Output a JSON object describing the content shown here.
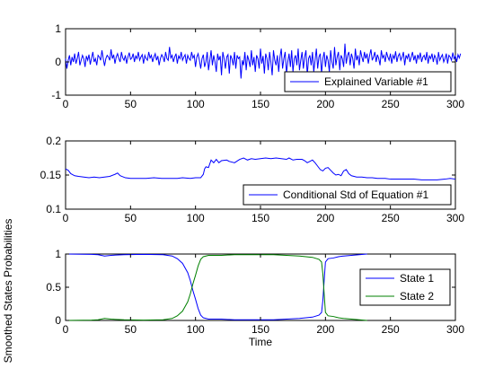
{
  "chart_data": [
    {
      "type": "line",
      "xlim": [
        0,
        300
      ],
      "ylim": [
        -1,
        1
      ],
      "xticks": [
        "0",
        "50",
        "100",
        "150",
        "200",
        "250",
        "300"
      ],
      "yticks": [
        "-1",
        "0",
        "1"
      ],
      "xlabel": "",
      "ylabel": "",
      "grid": false,
      "legend_position": "bottom-right",
      "series": [
        {
          "name": "Explained Variable #1",
          "color": "#0000ff",
          "x_step": 1,
          "values": [
            0.1,
            -0.2,
            0.05,
            0.2,
            -0.1,
            0.15,
            0.0,
            0.25,
            -0.05,
            0.1,
            0.3,
            -0.1,
            0.05,
            0.2,
            0.1,
            -0.15,
            0.18,
            0.05,
            0.22,
            -0.08,
            0.12,
            0.3,
            0.0,
            0.1,
            -0.1,
            0.2,
            0.15,
            0.05,
            0.35,
            0.1,
            -0.12,
            0.1,
            0.2,
            0.15,
            0.05,
            0.38,
            0.1,
            0.22,
            -0.05,
            0.15,
            0.25,
            0.1,
            0.0,
            0.3,
            0.12,
            0.05,
            0.2,
            -0.05,
            0.15,
            0.28,
            0.08,
            0.12,
            0.25,
            0.0,
            0.18,
            0.1,
            0.3,
            0.05,
            0.15,
            0.22,
            -0.05,
            0.2,
            0.1,
            0.05,
            0.3,
            0.12,
            0.2,
            0.0,
            0.15,
            0.25,
            0.05,
            0.18,
            -0.1,
            0.1,
            0.22,
            0.15,
            0.0,
            0.3,
            0.1,
            0.05,
            0.45,
            0.12,
            0.2,
            0.0,
            0.15,
            0.25,
            -0.05,
            0.18,
            0.1,
            0.3,
            0.05,
            0.15,
            0.22,
            -0.05,
            0.2,
            0.1,
            0.05,
            0.3,
            0.12,
            0.2,
            -0.15,
            0.15,
            0.25,
            0.05,
            -0.2,
            0.1,
            0.22,
            -0.15,
            0.0,
            0.3,
            -0.25,
            0.05,
            0.35,
            -0.1,
            0.2,
            0.0,
            -0.3,
            0.25,
            0.05,
            0.18,
            -0.4,
            0.3,
            0.1,
            -0.2,
            0.15,
            0.22,
            -0.35,
            0.2,
            0.1,
            -0.1,
            0.3,
            -0.2,
            0.2,
            0.1,
            0.15,
            -0.5,
            0.05,
            -0.1,
            0.3,
            -0.25,
            0.2,
            0.05,
            -0.15,
            0.35,
            -0.1,
            0.15,
            -0.3,
            0.2,
            0.1,
            -0.2,
            0.4,
            -0.05,
            0.18,
            -0.35,
            0.25,
            0.1,
            -0.25,
            0.3,
            0.0,
            -0.4,
            0.35,
            0.05,
            -0.1,
            0.2,
            -0.3,
            0.15,
            0.4,
            -0.2,
            0.1,
            0.3,
            -0.35,
            0.0,
            0.25,
            -0.15,
            0.35,
            -0.3,
            0.1,
            0.2,
            -0.1,
            0.4,
            -0.25,
            0.05,
            0.3,
            -0.2,
            0.15,
            0.35,
            -0.4,
            0.1,
            0.2,
            -0.1,
            0.3,
            -0.3,
            0.05,
            0.4,
            -0.2,
            0.15,
            0.25,
            -0.35,
            0.1,
            0.3,
            -0.15,
            0.2,
            0.05,
            -0.3,
            0.35,
            0.0,
            -0.2,
            0.45,
            -0.1,
            0.15,
            0.3,
            -0.25,
            0.2,
            0.1,
            -0.15,
            0.55,
            -0.05,
            0.2,
            0.3,
            -0.1,
            0.25,
            0.1,
            -0.2,
            0.4,
            0.05,
            0.2,
            -0.1,
            0.35,
            0.15,
            0.0,
            0.3,
            0.1,
            0.25,
            -0.05,
            0.2,
            0.38,
            0.05,
            0.15,
            0.3,
            0.0,
            0.22,
            0.1,
            -0.1,
            0.35,
            0.12,
            0.2,
            0.0,
            0.3,
            0.15,
            0.05,
            0.25,
            -0.05,
            0.2,
            0.1,
            0.32,
            0.0,
            0.18,
            0.25,
            0.05,
            0.15,
            0.3,
            -0.1,
            0.2,
            0.1,
            0.25,
            0.0,
            0.15,
            0.3,
            0.05,
            0.2,
            -0.05,
            0.22,
            0.1,
            0.28,
            0.0,
            0.15,
            0.2,
            0.05,
            0.3,
            -0.05,
            0.18,
            0.1,
            0.25,
            0.0,
            0.2,
            0.12,
            -0.08,
            0.3,
            0.05,
            0.15,
            0.22,
            0.0,
            0.1,
            0.25,
            -0.05,
            0.2,
            0.15,
            0.05,
            0.28,
            0.1,
            0.18,
            0.0,
            0.22,
            0.12,
            0.25
          ]
        }
      ]
    },
    {
      "type": "line",
      "xlim": [
        0,
        300
      ],
      "ylim": [
        0.1,
        0.2
      ],
      "xticks": [
        "0",
        "50",
        "100",
        "150",
        "200",
        "250",
        "300"
      ],
      "yticks": [
        "0.1",
        "0.15",
        "0.2"
      ],
      "xlabel": "",
      "ylabel": "",
      "grid": false,
      "legend_position": "bottom-right",
      "series": [
        {
          "name": "Conditional Std of Equation #1",
          "color": "#0000ff",
          "points": [
            [
              0,
              0.159
            ],
            [
              2,
              0.157
            ],
            [
              4,
              0.152
            ],
            [
              7,
              0.149
            ],
            [
              10,
              0.148
            ],
            [
              14,
              0.147
            ],
            [
              18,
              0.146
            ],
            [
              22,
              0.147
            ],
            [
              26,
              0.146
            ],
            [
              30,
              0.147
            ],
            [
              34,
              0.148
            ],
            [
              38,
              0.151
            ],
            [
              40,
              0.153
            ],
            [
              42,
              0.149
            ],
            [
              46,
              0.146
            ],
            [
              50,
              0.145
            ],
            [
              56,
              0.145
            ],
            [
              62,
              0.145
            ],
            [
              68,
              0.146
            ],
            [
              74,
              0.145
            ],
            [
              80,
              0.145
            ],
            [
              86,
              0.145
            ],
            [
              90,
              0.146
            ],
            [
              96,
              0.145
            ],
            [
              100,
              0.146
            ],
            [
              104,
              0.146
            ],
            [
              106,
              0.151
            ],
            [
              107,
              0.159
            ],
            [
              108,
              0.162
            ],
            [
              110,
              0.161
            ],
            [
              112,
              0.172
            ],
            [
              114,
              0.168
            ],
            [
              116,
              0.173
            ],
            [
              118,
              0.168
            ],
            [
              120,
              0.171
            ],
            [
              124,
              0.172
            ],
            [
              126,
              0.17
            ],
            [
              130,
              0.168
            ],
            [
              134,
              0.173
            ],
            [
              137,
              0.175
            ],
            [
              140,
              0.172
            ],
            [
              143,
              0.174
            ],
            [
              146,
              0.173
            ],
            [
              150,
              0.174
            ],
            [
              154,
              0.175
            ],
            [
              158,
              0.174
            ],
            [
              162,
              0.175
            ],
            [
              166,
              0.174
            ],
            [
              170,
              0.173
            ],
            [
              172,
              0.175
            ],
            [
              175,
              0.172
            ],
            [
              178,
              0.173
            ],
            [
              182,
              0.173
            ],
            [
              184,
              0.171
            ],
            [
              186,
              0.168
            ],
            [
              188,
              0.17
            ],
            [
              190,
              0.172
            ],
            [
              192,
              0.168
            ],
            [
              194,
              0.163
            ],
            [
              196,
              0.158
            ],
            [
              198,
              0.156
            ],
            [
              200,
              0.16
            ],
            [
              202,
              0.161
            ],
            [
              204,
              0.157
            ],
            [
              206,
              0.153
            ],
            [
              208,
              0.15
            ],
            [
              210,
              0.151
            ],
            [
              212,
              0.149
            ],
            [
              214,
              0.156
            ],
            [
              216,
              0.158
            ],
            [
              218,
              0.152
            ],
            [
              220,
              0.149
            ],
            [
              224,
              0.147
            ],
            [
              228,
              0.147
            ],
            [
              232,
              0.146
            ],
            [
              236,
              0.146
            ],
            [
              240,
              0.145
            ],
            [
              246,
              0.145
            ],
            [
              250,
              0.144
            ],
            [
              256,
              0.144
            ],
            [
              262,
              0.144
            ],
            [
              268,
              0.144
            ],
            [
              274,
              0.143
            ],
            [
              280,
              0.143
            ],
            [
              286,
              0.143
            ],
            [
              292,
              0.144
            ],
            [
              296,
              0.145
            ],
            [
              300,
              0.144
            ]
          ]
        }
      ]
    },
    {
      "type": "line",
      "xlim": [
        0,
        300
      ],
      "ylim": [
        0,
        1
      ],
      "xticks": [
        "0",
        "50",
        "100",
        "150",
        "200",
        "250",
        "300"
      ],
      "yticks": [
        "0",
        "0.5",
        "1"
      ],
      "xlabel": "Time",
      "ylabel": "Smoothed States Probabilities",
      "grid": false,
      "legend_position": "right",
      "series": [
        {
          "name": "State 1",
          "color": "#0000ff",
          "points": [
            [
              0,
              1.0
            ],
            [
              20,
              0.995
            ],
            [
              25,
              0.99
            ],
            [
              30,
              0.97
            ],
            [
              35,
              0.98
            ],
            [
              45,
              0.99
            ],
            [
              60,
              0.995
            ],
            [
              75,
              0.99
            ],
            [
              82,
              0.97
            ],
            [
              86,
              0.93
            ],
            [
              90,
              0.86
            ],
            [
              94,
              0.72
            ],
            [
              96,
              0.6
            ],
            [
              98,
              0.45
            ],
            [
              100,
              0.32
            ],
            [
              102,
              0.18
            ],
            [
              104,
              0.08
            ],
            [
              106,
              0.04
            ],
            [
              110,
              0.02
            ],
            [
              120,
              0.02
            ],
            [
              130,
              0.01
            ],
            [
              140,
              0.01
            ],
            [
              150,
              0.01
            ],
            [
              160,
              0.01
            ],
            [
              170,
              0.02
            ],
            [
              180,
              0.03
            ],
            [
              190,
              0.05
            ],
            [
              195,
              0.08
            ],
            [
              197,
              0.12
            ],
            [
              198,
              0.3
            ],
            [
              199,
              0.6
            ],
            [
              200,
              0.88
            ],
            [
              202,
              0.93
            ],
            [
              206,
              0.94
            ],
            [
              210,
              0.96
            ],
            [
              214,
              0.97
            ],
            [
              220,
              0.98
            ],
            [
              226,
              0.99
            ],
            [
              232,
              1.0
            ]
          ]
        },
        {
          "name": "State 2",
          "color": "#008000",
          "points": [
            [
              0,
              0.0
            ],
            [
              20,
              0.005
            ],
            [
              25,
              0.01
            ],
            [
              30,
              0.03
            ],
            [
              35,
              0.02
            ],
            [
              45,
              0.01
            ],
            [
              60,
              0.005
            ],
            [
              75,
              0.01
            ],
            [
              82,
              0.03
            ],
            [
              86,
              0.07
            ],
            [
              90,
              0.14
            ],
            [
              94,
              0.28
            ],
            [
              96,
              0.4
            ],
            [
              98,
              0.55
            ],
            [
              100,
              0.68
            ],
            [
              102,
              0.82
            ],
            [
              104,
              0.92
            ],
            [
              106,
              0.96
            ],
            [
              110,
              0.98
            ],
            [
              120,
              0.98
            ],
            [
              130,
              0.99
            ],
            [
              140,
              0.99
            ],
            [
              150,
              0.99
            ],
            [
              160,
              0.99
            ],
            [
              170,
              0.98
            ],
            [
              180,
              0.97
            ],
            [
              190,
              0.95
            ],
            [
              195,
              0.92
            ],
            [
              197,
              0.88
            ],
            [
              198,
              0.7
            ],
            [
              199,
              0.4
            ],
            [
              200,
              0.12
            ],
            [
              202,
              0.07
            ],
            [
              206,
              0.06
            ],
            [
              210,
              0.04
            ],
            [
              214,
              0.03
            ],
            [
              220,
              0.02
            ],
            [
              226,
              0.01
            ],
            [
              232,
              0.0
            ]
          ]
        }
      ]
    }
  ]
}
